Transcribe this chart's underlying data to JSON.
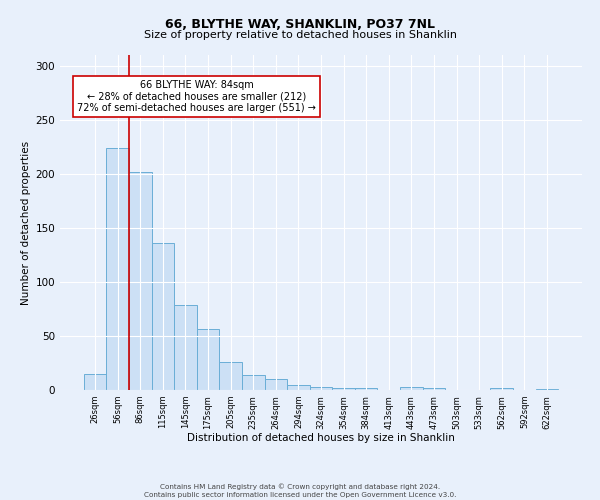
{
  "title": "66, BLYTHE WAY, SHANKLIN, PO37 7NL",
  "subtitle": "Size of property relative to detached houses in Shanklin",
  "xlabel": "Distribution of detached houses by size in Shanklin",
  "ylabel": "Number of detached properties",
  "bin_labels": [
    "26sqm",
    "56sqm",
    "86sqm",
    "115sqm",
    "145sqm",
    "175sqm",
    "205sqm",
    "235sqm",
    "264sqm",
    "294sqm",
    "324sqm",
    "354sqm",
    "384sqm",
    "413sqm",
    "443sqm",
    "473sqm",
    "503sqm",
    "533sqm",
    "562sqm",
    "592sqm",
    "622sqm"
  ],
  "bar_heights": [
    15,
    224,
    202,
    136,
    79,
    56,
    26,
    14,
    10,
    5,
    3,
    2,
    2,
    0,
    3,
    2,
    0,
    0,
    2,
    0,
    1
  ],
  "bar_color": "#cce0f5",
  "bar_edge_color": "#6aaed6",
  "marker_line_color": "#cc0000",
  "annotation_lines": [
    "66 BLYTHE WAY: 84sqm",
    "← 28% of detached houses are smaller (212)",
    "72% of semi-detached houses are larger (551) →"
  ],
  "annotation_box_color": "#ffffff",
  "annotation_box_edge_color": "#cc0000",
  "ylim": [
    0,
    310
  ],
  "yticks": [
    0,
    50,
    100,
    150,
    200,
    250,
    300
  ],
  "footer_line1": "Contains HM Land Registry data © Crown copyright and database right 2024.",
  "footer_line2": "Contains public sector information licensed under the Open Government Licence v3.0.",
  "bg_color": "#e8f0fb",
  "plot_bg_color": "#e8f0fb"
}
